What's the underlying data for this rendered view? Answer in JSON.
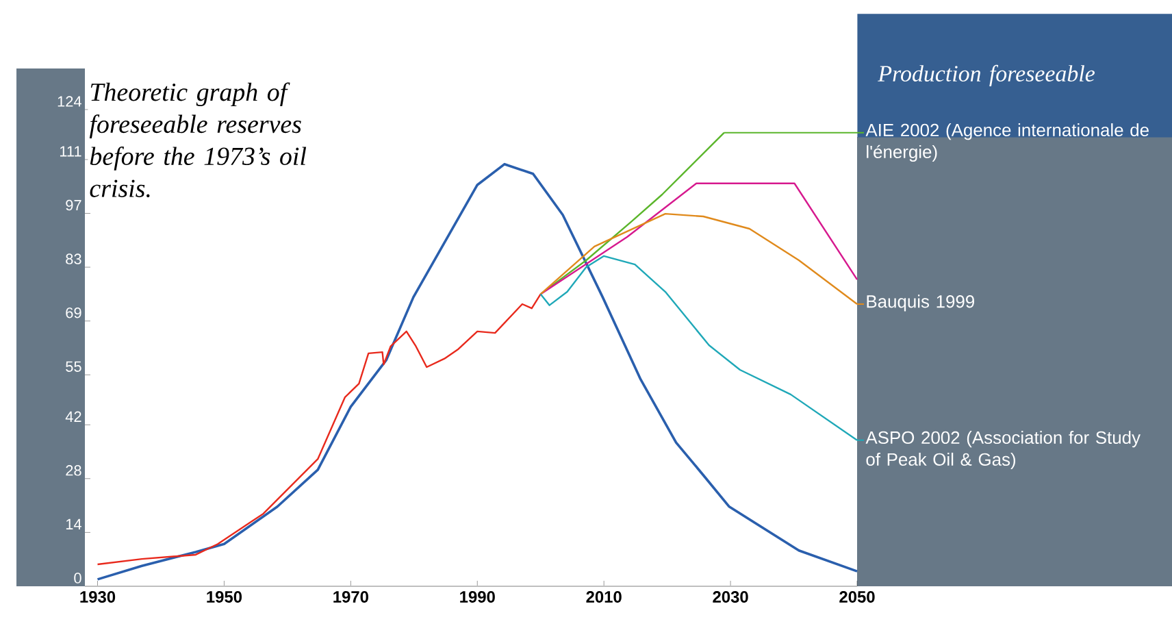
{
  "chart_data": {
    "type": "line",
    "legend_title": "Production foreseeable",
    "legend": "right",
    "xlim": [
      1928,
      2050
    ],
    "xticks": [
      1930,
      1950,
      1970,
      1990,
      2010,
      2030,
      2050
    ],
    "ylim": [
      0,
      124
    ],
    "yticks": [
      0,
      14,
      28,
      42,
      55,
      69,
      83,
      97,
      111,
      124
    ],
    "annotations": [
      "Theoretic graph of foreseeable reserves before the 1973’s oil crisis."
    ],
    "series": [
      {
        "color": "#2a5fad",
        "x": [
          1930,
          1937,
          1945.5,
          1950,
          1958.4,
          1964.8,
          1970,
          1975.6,
          1979.9,
          1990,
          1994.3,
          1998.8,
          2003.5,
          2009.8,
          2015.8,
          2021.4,
          2025.7,
          2029.8,
          2040.8,
          2050
        ],
        "values": [
          1.8,
          5.3,
          8.9,
          11,
          20.7,
          30.3,
          46.7,
          58.8,
          75.2,
          104.4,
          109.8,
          107.3,
          96.6,
          75.2,
          53.8,
          37.4,
          28.9,
          20.7,
          9.3,
          3.9
        ]
      },
      {
        "color": "#e8291c",
        "x": [
          1930,
          1937,
          1945.5,
          1949,
          1956.2,
          1964.8,
          1969.1,
          1971.3,
          1972.8,
          1975,
          1975.2,
          1976.3,
          1978.8,
          1980.3,
          1982,
          1984.8,
          1987,
          1990,
          1992.8,
          1997.1,
          1998.6,
          2000
        ],
        "values": [
          5.7,
          7.1,
          8.2,
          11,
          18.9,
          33.1,
          49.2,
          52.7,
          60.6,
          60.9,
          57.7,
          62.4,
          66.3,
          62.4,
          57,
          59.2,
          61.7,
          66.3,
          65.9,
          73.4,
          72.3,
          76
        ]
      },
      {
        "name": "AIE 2002 (Agence internationale de l'énergie)",
        "color": "#5ab52a",
        "x": [
          2000,
          2007.2,
          2014.3,
          2019.2,
          2029
        ],
        "values": [
          76,
          84.8,
          94.8,
          101.9,
          118
        ]
      },
      {
        "color": "#d6198e",
        "x": [
          2000,
          2013.7,
          2024.6,
          2040.1,
          2050
        ],
        "values": [
          76,
          90.9,
          104.8,
          104.8,
          79.8
        ]
      },
      {
        "name": "Bauquis 1999",
        "color": "#e08a1c",
        "x": [
          2000,
          2008.5,
          2019.7,
          2025.7,
          2033,
          2040.8,
          2050
        ],
        "values": [
          76,
          88.4,
          96.9,
          96.2,
          93,
          84.8,
          73.4
        ]
      },
      {
        "name": "ASPO 2002 (Association for Study of Peak Oil & Gas)",
        "color": "#1fa8b8",
        "x": [
          2000,
          2001.4,
          2004.2,
          2007.2,
          2010,
          2014.9,
          2019.7,
          2026.6,
          2031.5,
          2039.5,
          2050
        ],
        "values": [
          76,
          73.1,
          76.6,
          83,
          85.9,
          83.7,
          76.6,
          62.7,
          56.3,
          49.9,
          38
        ]
      }
    ]
  }
}
